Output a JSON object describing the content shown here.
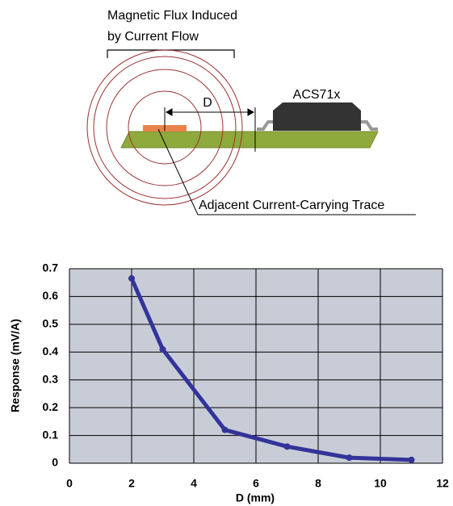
{
  "diagram": {
    "flux_label": [
      "Magnetic Flux Induced",
      "by Current Flow"
    ],
    "distance_label": "D",
    "chip_label": "ACS71x",
    "trace_label": "Adjacent Current-Carrying Trace"
  },
  "chart_data": {
    "type": "line",
    "x_label": "D (mm)",
    "y_label": "Response (mV/A)",
    "x": [
      2,
      3,
      5,
      7,
      9,
      11
    ],
    "values": [
      0.665,
      0.41,
      0.12,
      0.06,
      0.02,
      0.012
    ],
    "color": "#333399",
    "xlim": [
      0,
      12
    ],
    "xticks": [
      0,
      2,
      4,
      6,
      8,
      10,
      12
    ],
    "ylim": [
      0,
      0.7
    ],
    "yticks": [
      0,
      0.1,
      0.2,
      0.3,
      0.4,
      0.5,
      0.6,
      0.7
    ],
    "grid": true
  }
}
